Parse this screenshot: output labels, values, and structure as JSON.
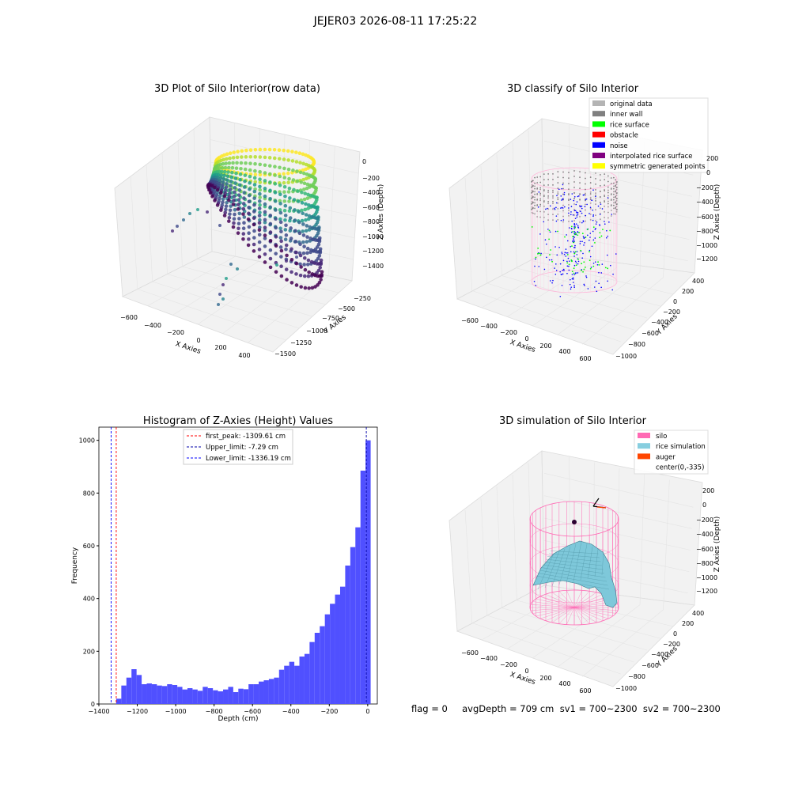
{
  "suptitle": "JEJER03 2026-08-11 17:25:22",
  "stats_line": "flag = 0     avgDepth = 709 cm  sv1 = 700~2300  sv2 = 700~2300",
  "colors": {
    "hist_bar": "#5050ff",
    "first_peak": "#ff0000",
    "upper_limit": "#0000aa",
    "lower_limit": "#0000ff",
    "silo": "#ff69b4",
    "rice": "#87cedf",
    "auger": "#ff4500"
  },
  "chart_data": [
    {
      "type": "scatter",
      "title": "3D Plot of Silo Interior(row data)",
      "xlabel": "X Axies",
      "ylabel": "Y Axies",
      "zlabel": "Z Axies (Depth)",
      "x_ticks": [
        "−600",
        "−400",
        "−200",
        "0",
        "200",
        "400"
      ],
      "y_ticks": [
        "−250",
        "−500",
        "−750",
        "−1000",
        "−1250",
        "−1500"
      ],
      "z_ticks": [
        "0",
        "−200",
        "−400",
        "−600",
        "−800",
        "−1000",
        "−1200",
        "−1400"
      ],
      "colormap": "viridis",
      "grid": true
    },
    {
      "type": "scatter",
      "title": "3D classify of Silo Interior",
      "xlabel": "X Axies",
      "ylabel": "Y Axies",
      "zlabel": "Z Axies (Depth)",
      "x_ticks": [
        "−600",
        "−400",
        "−200",
        "0",
        "200",
        "400",
        "600"
      ],
      "y_ticks": [
        "400",
        "200",
        "0",
        "−200",
        "−400",
        "−600",
        "−800",
        "−1000"
      ],
      "z_ticks": [
        "200",
        "0",
        "−200",
        "−400",
        "−600",
        "−800",
        "−1000",
        "−1200"
      ],
      "legend": [
        {
          "label": "original data",
          "color": "#b4b4b4"
        },
        {
          "label": "inner wall",
          "color": "#808080"
        },
        {
          "label": "rice surface",
          "color": "#00ff00"
        },
        {
          "label": "obstacle",
          "color": "#ff0000"
        },
        {
          "label": "noise",
          "color": "#0000ff"
        },
        {
          "label": "interpolated rice surface",
          "color": "#800080"
        },
        {
          "label": "symmetric generated points",
          "color": "#ffff00"
        }
      ],
      "legend_position": "upper right",
      "grid": true
    },
    {
      "type": "bar",
      "title": "Histogram of Z-Axies (Height) Values",
      "xlabel": "Depth (cm)",
      "ylabel": "Frequency",
      "xlim": [
        -1400,
        50
      ],
      "ylim": [
        0,
        1050
      ],
      "x_ticks": [
        -1400,
        -1200,
        -1000,
        -800,
        -600,
        -400,
        -200,
        0
      ],
      "y_ticks": [
        0,
        200,
        400,
        600,
        800,
        1000
      ],
      "bin_width": 26.5,
      "bin_start": -1336.19,
      "values": [
        0,
        20,
        70,
        100,
        132,
        110,
        75,
        78,
        75,
        70,
        68,
        75,
        72,
        65,
        55,
        60,
        55,
        50,
        65,
        60,
        52,
        48,
        55,
        65,
        45,
        58,
        56,
        75,
        75,
        85,
        90,
        95,
        100,
        130,
        145,
        160,
        145,
        180,
        190,
        235,
        270,
        295,
        340,
        380,
        415,
        445,
        525,
        595,
        670,
        885,
        1000
      ],
      "vlines": [
        {
          "label": "first_peak: -1309.61 cm",
          "x": -1309.61,
          "color": "#ff0000"
        },
        {
          "label": "Upper_limit: -7.29 cm",
          "x": -7.29,
          "color": "#0000aa"
        },
        {
          "label": "Lower_limit: -1336.19 cm",
          "x": -1336.19,
          "color": "#0000ff"
        }
      ],
      "legend_position": "upper center"
    },
    {
      "type": "surface",
      "title": "3D simulation of Silo Interior",
      "xlabel": "X Axies",
      "ylabel": "Y Axies",
      "zlabel": "Z Axies (Depth)",
      "x_ticks": [
        "−600",
        "−400",
        "−200",
        "0",
        "200",
        "400",
        "600"
      ],
      "y_ticks": [
        "400",
        "200",
        "0",
        "−200",
        "−400",
        "−600",
        "−800",
        "−1000"
      ],
      "z_ticks": [
        "200",
        "0",
        "−200",
        "−400",
        "−600",
        "−800",
        "−1000",
        "−1200"
      ],
      "legend": [
        {
          "label": "silo",
          "color": "#ff69b4"
        },
        {
          "label": "rice simulation",
          "color": "#87cedf"
        },
        {
          "label": "auger",
          "color": "#ff4500"
        },
        {
          "label": "center(0,-335)",
          "color": ""
        }
      ],
      "legend_position": "upper right",
      "grid": true
    }
  ]
}
